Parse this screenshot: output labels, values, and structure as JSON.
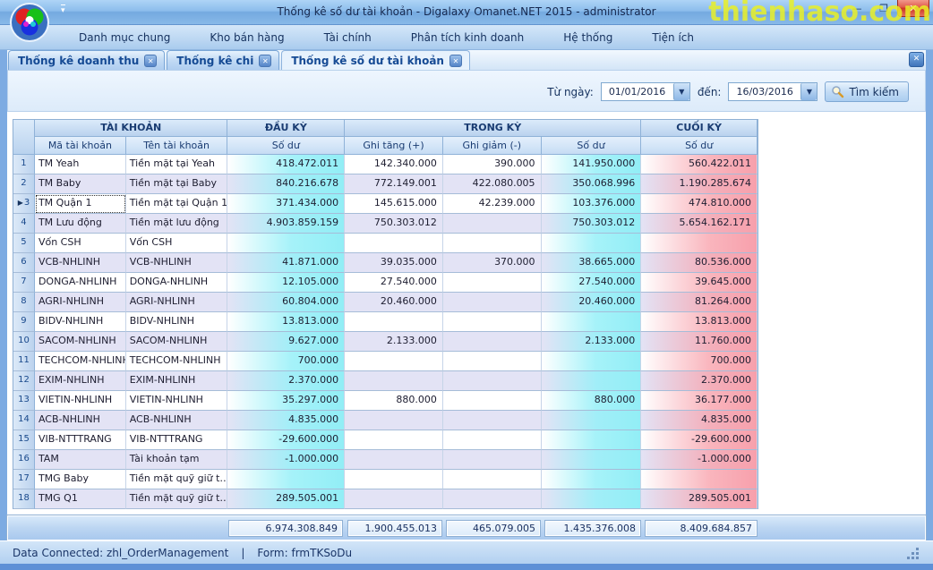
{
  "window": {
    "title": "Thống kê số dư tài khoản - Digalaxy Omanet.NET 2015 - administrator",
    "watermark": "thienhaso.com",
    "minimize_glyph": "—",
    "maximize_glyph": "❐",
    "close_glyph": "✕"
  },
  "menu": {
    "items": [
      "Danh mục chung",
      "Kho bán hàng",
      "Tài chính",
      "Phân tích kinh doanh",
      "Hệ thống",
      "Tiện ích"
    ]
  },
  "tabs": [
    {
      "label": "Thống kê doanh thu",
      "active": false
    },
    {
      "label": "Thống kê chi",
      "active": false
    },
    {
      "label": "Thống kê số dư tài khoản",
      "active": true
    }
  ],
  "filter": {
    "from_label": "Từ ngày:",
    "from_value": "01/01/2016",
    "to_label": "đến:",
    "to_value": "16/03/2016",
    "search_label": "Tìm kiếm"
  },
  "grid": {
    "group_headers": [
      "TÀI KHOẢN",
      "ĐẦU KỲ",
      "TRONG KỲ",
      "CUỐI KỲ"
    ],
    "columns": [
      "Mã tài khoản",
      "Tên tài khoản",
      "Số dư",
      "Ghi tăng (+)",
      "Ghi giảm (-)",
      "Số dư",
      "Số dư"
    ],
    "selected_row": 3,
    "rows": [
      {
        "num": 1,
        "code": "TM Yeah",
        "name": "Tiền mặt tại Yeah",
        "opening": "418.472.011",
        "increase": "142.340.000",
        "decrease": "390.000",
        "period": "141.950.000",
        "closing": "560.422.011"
      },
      {
        "num": 2,
        "code": "TM Baby",
        "name": "Tiền mặt tại Baby",
        "opening": "840.216.678",
        "increase": "772.149.001",
        "decrease": "422.080.005",
        "period": "350.068.996",
        "closing": "1.190.285.674"
      },
      {
        "num": 3,
        "code": "TM Quận 1",
        "name": "Tiền mặt tại Quận 1",
        "opening": "371.434.000",
        "increase": "145.615.000",
        "decrease": "42.239.000",
        "period": "103.376.000",
        "closing": "474.810.000"
      },
      {
        "num": 4,
        "code": "TM Lưu động",
        "name": "Tiền mặt lưu động",
        "opening": "4.903.859.159",
        "increase": "750.303.012",
        "decrease": "",
        "period": "750.303.012",
        "closing": "5.654.162.171"
      },
      {
        "num": 5,
        "code": "Vốn CSH",
        "name": "Vốn CSH",
        "opening": "",
        "increase": "",
        "decrease": "",
        "period": "",
        "closing": ""
      },
      {
        "num": 6,
        "code": "VCB-NHLINH",
        "name": "VCB-NHLINH",
        "opening": "41.871.000",
        "increase": "39.035.000",
        "decrease": "370.000",
        "period": "38.665.000",
        "closing": "80.536.000"
      },
      {
        "num": 7,
        "code": "DONGA-NHLINH",
        "name": "DONGA-NHLINH",
        "opening": "12.105.000",
        "increase": "27.540.000",
        "decrease": "",
        "period": "27.540.000",
        "closing": "39.645.000"
      },
      {
        "num": 8,
        "code": "AGRI-NHLINH",
        "name": "AGRI-NHLINH",
        "opening": "60.804.000",
        "increase": "20.460.000",
        "decrease": "",
        "period": "20.460.000",
        "closing": "81.264.000"
      },
      {
        "num": 9,
        "code": "BIDV-NHLINH",
        "name": "BIDV-NHLINH",
        "opening": "13.813.000",
        "increase": "",
        "decrease": "",
        "period": "",
        "closing": "13.813.000"
      },
      {
        "num": 10,
        "code": "SACOM-NHLINH",
        "name": "SACOM-NHLINH",
        "opening": "9.627.000",
        "increase": "2.133.000",
        "decrease": "",
        "period": "2.133.000",
        "closing": "11.760.000"
      },
      {
        "num": 11,
        "code": "TECHCOM-NHLINH",
        "name": "TECHCOM-NHLINH",
        "opening": "700.000",
        "increase": "",
        "decrease": "",
        "period": "",
        "closing": "700.000"
      },
      {
        "num": 12,
        "code": "EXIM-NHLINH",
        "name": "EXIM-NHLINH",
        "opening": "2.370.000",
        "increase": "",
        "decrease": "",
        "period": "",
        "closing": "2.370.000"
      },
      {
        "num": 13,
        "code": "VIETIN-NHLINH",
        "name": "VIETIN-NHLINH",
        "opening": "35.297.000",
        "increase": "880.000",
        "decrease": "",
        "period": "880.000",
        "closing": "36.177.000"
      },
      {
        "num": 14,
        "code": "ACB-NHLINH",
        "name": "ACB-NHLINH",
        "opening": "4.835.000",
        "increase": "",
        "decrease": "",
        "period": "",
        "closing": "4.835.000"
      },
      {
        "num": 15,
        "code": "VIB-NTTTRANG",
        "name": "VIB-NTTTRANG",
        "opening": "-29.600.000",
        "increase": "",
        "decrease": "",
        "period": "",
        "closing": "-29.600.000"
      },
      {
        "num": 16,
        "code": "TAM",
        "name": "Tài khoản tạm",
        "opening": "-1.000.000",
        "increase": "",
        "decrease": "",
        "period": "",
        "closing": "-1.000.000"
      },
      {
        "num": 17,
        "code": "TMG Baby",
        "name": "Tiền mặt quỹ giữ t…",
        "opening": "",
        "increase": "",
        "decrease": "",
        "period": "",
        "closing": ""
      },
      {
        "num": 18,
        "code": "TMG Q1",
        "name": "Tiền mặt quỹ giữ t…",
        "opening": "289.505.001",
        "increase": "",
        "decrease": "",
        "period": "",
        "closing": "289.505.001"
      }
    ],
    "totals": {
      "opening": "6.974.308.849",
      "increase": "1.900.455.013",
      "decrease": "465.079.005",
      "period": "1.435.376.008",
      "closing": "8.409.684.857"
    }
  },
  "status_bar": {
    "connection": "Data Connected: zhl_OrderManagement",
    "separator": "|",
    "form": "Form: frmTKSoDu"
  },
  "colors": {
    "opening_balance_column": "#92eef6",
    "closing_balance_column": "#f7a0ac",
    "even_row": "#e3e3f5",
    "header_blue": "#b9d2ee",
    "watermark_yellow": "#e9f026",
    "close_button_red": "#cc3322"
  }
}
